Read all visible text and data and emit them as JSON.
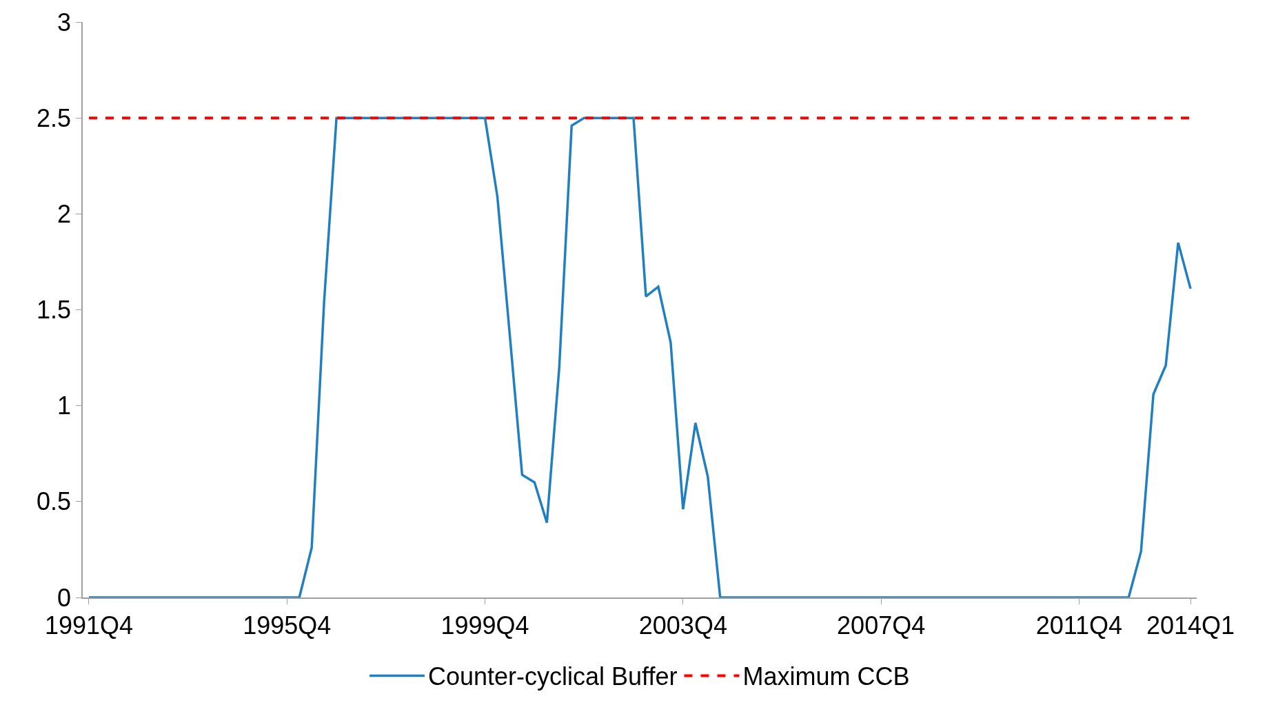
{
  "chart_data": {
    "type": "line",
    "categories": [
      "1991Q4",
      null,
      null,
      null,
      null,
      null,
      null,
      null,
      null,
      null,
      null,
      null,
      null,
      null,
      null,
      null,
      "1995Q4",
      null,
      null,
      null,
      null,
      null,
      null,
      null,
      null,
      null,
      null,
      null,
      null,
      null,
      null,
      null,
      "1999Q4",
      null,
      null,
      null,
      null,
      null,
      null,
      null,
      null,
      null,
      null,
      null,
      null,
      null,
      null,
      null,
      "2003Q4",
      null,
      null,
      null,
      null,
      null,
      null,
      null,
      null,
      null,
      null,
      null,
      null,
      null,
      null,
      null,
      "2007Q4",
      null,
      null,
      null,
      null,
      null,
      null,
      null,
      null,
      null,
      null,
      null,
      null,
      null,
      null,
      null,
      "2011Q4",
      null,
      null,
      null,
      null,
      null,
      null,
      null,
      null,
      "2014Q1"
    ],
    "series": [
      {
        "name": "Counter-cyclical Buffer",
        "color": "#1f7fc0",
        "line_style": "solid",
        "values": [
          0,
          0,
          0,
          0,
          0,
          0,
          0,
          0,
          0,
          0,
          0,
          0,
          0,
          0,
          0,
          0,
          0,
          0,
          0.26,
          1.54,
          2.5,
          2.5,
          2.5,
          2.5,
          2.5,
          2.5,
          2.5,
          2.5,
          2.5,
          2.5,
          2.5,
          2.5,
          2.5,
          2.09,
          1.37,
          0.64,
          0.6,
          0.39,
          1.2,
          2.46,
          2.5,
          2.5,
          2.5,
          2.5,
          2.5,
          1.57,
          1.62,
          1.33,
          0.46,
          0.91,
          0.63,
          0,
          0,
          0,
          0,
          0,
          0,
          0,
          0,
          0,
          0,
          0,
          0,
          0,
          0,
          0,
          0,
          0,
          0,
          0,
          0,
          0,
          0,
          0,
          0,
          0,
          0,
          0,
          0,
          0,
          0,
          0,
          0,
          0,
          0,
          0.24,
          1.06,
          1.21,
          1.85,
          1.61
        ]
      },
      {
        "name": "Maximum CCB",
        "color": "#ff0000",
        "line_style": "dashed",
        "values": [
          2.5,
          2.5,
          2.5,
          2.5,
          2.5,
          2.5,
          2.5,
          2.5,
          2.5,
          2.5,
          2.5,
          2.5,
          2.5,
          2.5,
          2.5,
          2.5,
          2.5,
          2.5,
          2.5,
          2.5,
          2.5,
          2.5,
          2.5,
          2.5,
          2.5,
          2.5,
          2.5,
          2.5,
          2.5,
          2.5,
          2.5,
          2.5,
          2.5,
          2.5,
          2.5,
          2.5,
          2.5,
          2.5,
          2.5,
          2.5,
          2.5,
          2.5,
          2.5,
          2.5,
          2.5,
          2.5,
          2.5,
          2.5,
          2.5,
          2.5,
          2.5,
          2.5,
          2.5,
          2.5,
          2.5,
          2.5,
          2.5,
          2.5,
          2.5,
          2.5,
          2.5,
          2.5,
          2.5,
          2.5,
          2.5,
          2.5,
          2.5,
          2.5,
          2.5,
          2.5,
          2.5,
          2.5,
          2.5,
          2.5,
          2.5,
          2.5,
          2.5,
          2.5,
          2.5,
          2.5,
          2.5,
          2.5,
          2.5,
          2.5,
          2.5,
          2.5,
          2.5,
          2.5,
          2.5,
          2.5
        ]
      }
    ],
    "ylim": [
      0,
      3
    ],
    "yticks": [
      0,
      0.5,
      1,
      1.5,
      2,
      2.5,
      3
    ],
    "legend": "bottom",
    "marker": "none"
  }
}
